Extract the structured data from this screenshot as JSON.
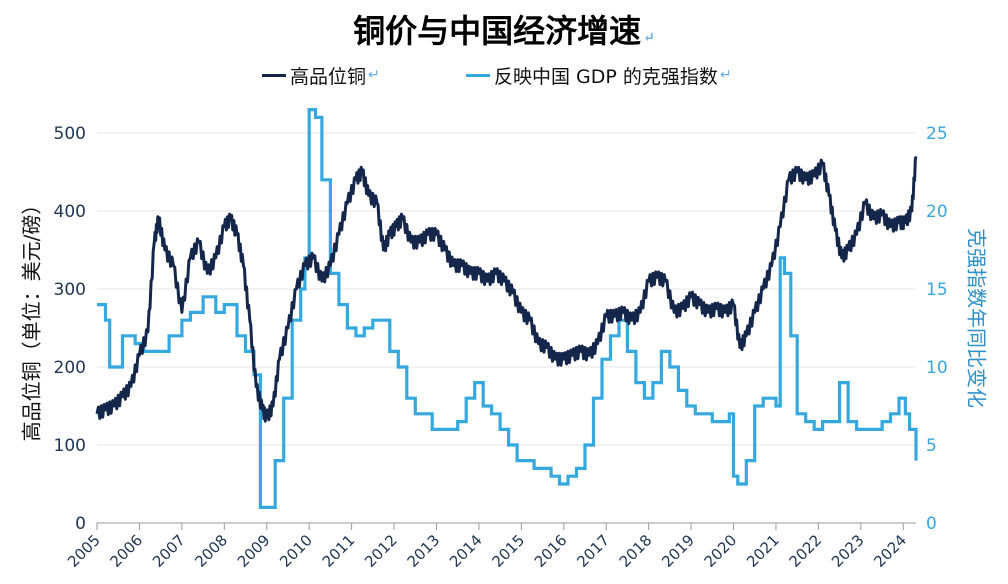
{
  "chart_data": {
    "type": "line",
    "title": "铜价与中国经济增速",
    "title_mark": "↵",
    "ylabel_left": "高品位铜（单位：美元/磅）",
    "ylabel_right": "克强指数年同比变化",
    "ylim_left": [
      0,
      500
    ],
    "ylim_right": [
      0,
      25
    ],
    "yticks_left": [
      "0",
      "100",
      "200",
      "300",
      "400",
      "500"
    ],
    "yticks_right": [
      "0",
      "5",
      "10",
      "15",
      "20",
      "25"
    ],
    "xlim": [
      2005,
      2024.3
    ],
    "xticks": [
      "2005",
      "2006",
      "2007",
      "2008",
      "2009",
      "2010",
      "2011",
      "2012",
      "2013",
      "2014",
      "2015",
      "2016",
      "2017",
      "2018",
      "2019",
      "2020",
      "2021",
      "2022",
      "2023",
      "2024"
    ],
    "grid": true,
    "legend_position": "top",
    "colors": {
      "copper": "#14274a",
      "gdp": "#35a8df",
      "grid": "#e4e4e4",
      "left_axis": "#1f3552",
      "right_axis": "#3aa4dc"
    },
    "series": [
      {
        "name": "高品位铜",
        "axis": "left",
        "x": [
          2005.0,
          2005.2,
          2005.4,
          2005.6,
          2005.8,
          2006.0,
          2006.2,
          2006.35,
          2006.45,
          2006.6,
          2006.8,
          2007.0,
          2007.2,
          2007.4,
          2007.6,
          2007.8,
          2008.0,
          2008.15,
          2008.3,
          2008.45,
          2008.6,
          2008.75,
          2008.9,
          2009.0,
          2009.15,
          2009.3,
          2009.5,
          2009.7,
          2009.9,
          2010.1,
          2010.3,
          2010.5,
          2010.7,
          2010.9,
          2011.1,
          2011.25,
          2011.4,
          2011.6,
          2011.75,
          2011.9,
          2012.05,
          2012.2,
          2012.4,
          2012.6,
          2012.8,
          2013.0,
          2013.2,
          2013.4,
          2013.6,
          2013.8,
          2014.0,
          2014.2,
          2014.4,
          2014.6,
          2014.8,
          2015.0,
          2015.2,
          2015.4,
          2015.6,
          2015.8,
          2016.0,
          2016.2,
          2016.4,
          2016.6,
          2016.8,
          2017.0,
          2017.2,
          2017.4,
          2017.6,
          2017.8,
          2018.0,
          2018.2,
          2018.4,
          2018.6,
          2018.8,
          2019.0,
          2019.2,
          2019.4,
          2019.6,
          2019.8,
          2020.0,
          2020.15,
          2020.3,
          2020.5,
          2020.7,
          2020.9,
          2021.1,
          2021.3,
          2021.5,
          2021.7,
          2021.9,
          2022.1,
          2022.25,
          2022.4,
          2022.55,
          2022.7,
          2022.9,
          2023.1,
          2023.3,
          2023.5,
          2023.7,
          2023.9,
          2024.05,
          2024.2,
          2024.3
        ],
        "values": [
          140,
          145,
          150,
          162,
          175,
          215,
          245,
          360,
          390,
          350,
          330,
          270,
          340,
          360,
          320,
          340,
          380,
          390,
          370,
          330,
          260,
          175,
          145,
          135,
          150,
          210,
          250,
          300,
          330,
          340,
          310,
          330,
          370,
          410,
          440,
          450,
          420,
          410,
          350,
          370,
          380,
          390,
          360,
          360,
          370,
          370,
          350,
          330,
          330,
          320,
          320,
          310,
          320,
          310,
          295,
          270,
          260,
          230,
          225,
          210,
          210,
          215,
          220,
          215,
          230,
          265,
          265,
          270,
          260,
          270,
          310,
          315,
          310,
          270,
          275,
          290,
          280,
          270,
          275,
          270,
          280,
          225,
          240,
          270,
          300,
          330,
          380,
          440,
          450,
          440,
          445,
          460,
          420,
          375,
          340,
          350,
          370,
          410,
          390,
          395,
          380,
          385,
          385,
          400,
          470
        ]
      },
      {
        "name": "反映中国 GDP 的克强指数",
        "axis": "right",
        "x": [
          2005.0,
          2005.2,
          2005.3,
          2005.6,
          2005.9,
          2006.1,
          2006.4,
          2006.7,
          2007.0,
          2007.2,
          2007.5,
          2007.8,
          2008.0,
          2008.3,
          2008.5,
          2008.7,
          2008.85,
          2009.0,
          2009.2,
          2009.4,
          2009.6,
          2009.8,
          2009.9,
          2010.0,
          2010.15,
          2010.3,
          2010.5,
          2010.7,
          2010.9,
          2011.1,
          2011.3,
          2011.5,
          2011.7,
          2011.9,
          2012.1,
          2012.3,
          2012.5,
          2012.7,
          2012.9,
          2013.1,
          2013.3,
          2013.5,
          2013.7,
          2013.9,
          2014.1,
          2014.3,
          2014.5,
          2014.7,
          2014.9,
          2015.1,
          2015.3,
          2015.5,
          2015.7,
          2015.9,
          2016.1,
          2016.3,
          2016.5,
          2016.7,
          2016.9,
          2017.1,
          2017.3,
          2017.5,
          2017.7,
          2017.9,
          2018.1,
          2018.3,
          2018.5,
          2018.7,
          2018.9,
          2019.1,
          2019.3,
          2019.5,
          2019.7,
          2019.9,
          2020.0,
          2020.1,
          2020.3,
          2020.5,
          2020.7,
          2020.9,
          2021.0,
          2021.1,
          2021.2,
          2021.35,
          2021.5,
          2021.7,
          2021.9,
          2022.1,
          2022.3,
          2022.5,
          2022.7,
          2022.9,
          2023.1,
          2023.3,
          2023.5,
          2023.7,
          2023.9,
          2024.05,
          2024.15,
          2024.3
        ],
        "values": [
          14,
          13,
          10,
          12,
          11.5,
          11,
          11,
          12,
          13,
          13.5,
          14.5,
          13.5,
          14,
          12,
          11,
          9.5,
          1,
          1,
          4,
          8,
          13,
          15,
          17,
          26.5,
          26,
          22,
          16,
          14,
          12.5,
          12,
          12.5,
          13,
          13,
          11,
          10,
          8,
          7,
          7,
          6,
          6,
          6,
          6.5,
          8,
          9,
          7.5,
          7,
          6,
          5,
          4,
          4,
          3.5,
          3.5,
          3,
          2.5,
          3,
          3.5,
          5,
          8,
          10.5,
          12,
          13,
          11,
          9,
          8,
          9,
          11,
          10,
          8.5,
          7.5,
          7,
          7,
          6.5,
          6.5,
          7,
          3,
          2.5,
          4,
          7.5,
          8,
          8,
          7.5,
          17,
          16,
          12,
          7,
          6.5,
          6,
          6.5,
          6.5,
          9,
          6.5,
          6,
          6,
          6,
          6.5,
          7,
          8,
          7,
          6,
          4
        ]
      }
    ]
  }
}
